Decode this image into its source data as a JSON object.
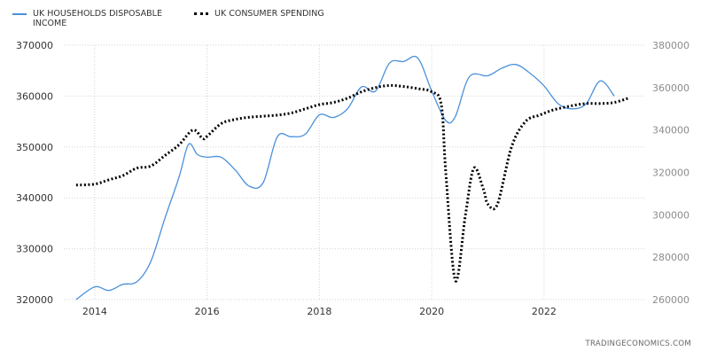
{
  "legend": {
    "income_label": "UK HOUSEHOLDS DISPOSABLE INCOME",
    "spending_label": "UK CONSUMER SPENDING"
  },
  "source": "TRADINGECONOMICS.COM",
  "colors": {
    "income": "#4a90d9",
    "spending": "#000000",
    "grid": "#d4d4d4",
    "left_axis_text": "#333333",
    "right_axis_text": "#8c8c8c"
  },
  "chart_data": {
    "type": "line",
    "title": "",
    "xlabel": "",
    "ylabel": "",
    "grid": true,
    "legend_position": "top-left",
    "xlim": [
      2013.45,
      2023.8
    ],
    "x_ticks": [
      2014,
      2016,
      2018,
      2020,
      2022
    ],
    "y_left": {
      "min": 320000,
      "max": 370000,
      "ticks": [
        320000,
        330000,
        340000,
        350000,
        360000,
        370000
      ],
      "tick_labels": [
        "320000",
        "330000",
        "340000",
        "350000",
        "360000",
        "370000"
      ]
    },
    "y_right": {
      "min": 260000,
      "max": 380000,
      "ticks": [
        260000,
        280000,
        300000,
        320000,
        340000,
        360000,
        380000
      ],
      "tick_labels": [
        "260000",
        "280000",
        "300000",
        "320000",
        "340000",
        "360000",
        "380000"
      ]
    },
    "series": [
      {
        "name": "UK HOUSEHOLDS DISPOSABLE INCOME",
        "axis": "left",
        "style": "solid",
        "x": [
          2013.67,
          2014.0,
          2014.25,
          2014.5,
          2014.75,
          2015.0,
          2015.25,
          2015.5,
          2015.67,
          2015.83,
          2016.0,
          2016.25,
          2016.5,
          2016.75,
          2017.0,
          2017.25,
          2017.5,
          2017.75,
          2018.0,
          2018.25,
          2018.5,
          2018.75,
          2019.0,
          2019.25,
          2019.5,
          2019.75,
          2020.0,
          2020.25,
          2020.42,
          2020.67,
          2021.0,
          2021.25,
          2021.5,
          2021.75,
          2022.0,
          2022.25,
          2022.5,
          2022.75,
          2023.0,
          2023.25
        ],
        "values": [
          320000,
          322500,
          321800,
          323000,
          323500,
          327500,
          336000,
          344000,
          350500,
          348500,
          348000,
          348000,
          345500,
          342300,
          343000,
          352000,
          352000,
          352500,
          356300,
          355800,
          357500,
          361800,
          361000,
          366500,
          366800,
          367500,
          361000,
          355200,
          356000,
          363800,
          364000,
          365500,
          366200,
          364500,
          362000,
          358500,
          357500,
          358500,
          363000,
          360000
        ]
      },
      {
        "name": "UK CONSUMER SPENDING",
        "axis": "right",
        "style": "dotted",
        "x": [
          2013.67,
          2014.0,
          2014.25,
          2014.5,
          2014.75,
          2015.0,
          2015.25,
          2015.5,
          2015.75,
          2015.92,
          2016.0,
          2016.25,
          2016.5,
          2016.75,
          2017.0,
          2017.25,
          2017.5,
          2017.75,
          2018.0,
          2018.25,
          2018.5,
          2018.75,
          2019.0,
          2019.25,
          2019.5,
          2019.75,
          2020.0,
          2020.17,
          2020.25,
          2020.42,
          2020.6,
          2020.75,
          2020.92,
          2021.0,
          2021.17,
          2021.42,
          2021.67,
          2021.92,
          2022.17,
          2022.5,
          2022.75,
          2023.0,
          2023.25,
          2023.5
        ],
        "values": [
          314000,
          314500,
          316500,
          318500,
          322000,
          323000,
          328000,
          333000,
          340000,
          336000,
          337000,
          343000,
          345000,
          346000,
          346500,
          347000,
          348000,
          350000,
          352000,
          353000,
          355000,
          358000,
          360000,
          361000,
          360500,
          359500,
          358000,
          352000,
          320000,
          269000,
          300000,
          322000,
          312000,
          305000,
          305000,
          332000,
          344000,
          347000,
          349500,
          351500,
          352500,
          352500,
          353000,
          355000
        ]
      }
    ]
  }
}
